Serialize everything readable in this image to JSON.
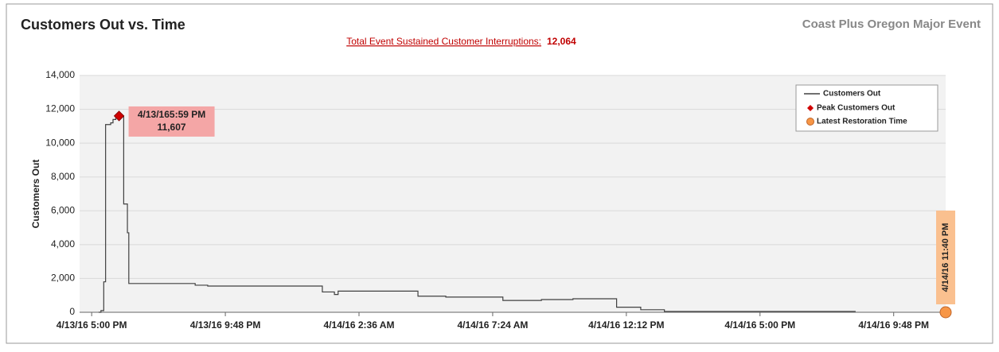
{
  "chart_data": {
    "type": "step-line",
    "title": "Customers Out vs. Time",
    "subtitle": "Coast Plus Oregon Major Event",
    "summary_label": "Total Event Sustained Customer Interruptions:",
    "summary_value": "12,064",
    "y_label": "Customers Out",
    "grid": true,
    "legend": "top-right",
    "xlim": [
      "2016-04-13T16:34",
      "2016-04-14T23:40"
    ],
    "xticks": [
      {
        "value": "2016-04-13T17:00",
        "label": "4/13/16 5:00 PM"
      },
      {
        "value": "2016-04-13T21:48",
        "label": "4/13/16 9:48 PM"
      },
      {
        "value": "2016-04-14T02:36",
        "label": "4/14/16 2:36 AM"
      },
      {
        "value": "2016-04-14T07:24",
        "label": "4/14/16 7:24 AM"
      },
      {
        "value": "2016-04-14T12:12",
        "label": "4/14/16 12:12 PM"
      },
      {
        "value": "2016-04-14T17:00",
        "label": "4/14/16 5:00 PM"
      },
      {
        "value": "2016-04-14T21:48",
        "label": "4/14/16 9:48 PM"
      }
    ],
    "ylim": [
      0,
      14000
    ],
    "yticks": [
      0,
      {
        "value": 2000,
        "label": "2,000"
      },
      {
        "value": 4000,
        "label": "4,000"
      },
      {
        "value": 6000,
        "label": "6,000"
      },
      {
        "value": 8000,
        "label": "8,000"
      },
      {
        "value": 10000,
        "label": "10,000"
      },
      {
        "value": 12000,
        "label": "12,000"
      },
      {
        "value": 14000,
        "label": "14,000"
      }
    ],
    "series": [
      {
        "name": "Customers Out",
        "color": "#404040",
        "x": [
          "2016-04-13T17:15",
          "2016-04-13T17:20",
          "2016-04-13T17:26",
          "2016-04-13T17:30",
          "2016-04-13T17:41",
          "2016-04-13T17:46",
          "2016-04-13T17:52",
          "2016-04-13T17:59",
          "2016-04-13T18:09",
          "2016-04-13T18:17",
          "2016-04-13T18:20",
          "2016-04-13T20:43",
          "2016-04-13T21:10",
          "2016-04-14T01:17",
          "2016-04-14T01:43",
          "2016-04-14T01:51",
          "2016-04-14T04:43",
          "2016-04-14T05:43",
          "2016-04-14T07:46",
          "2016-04-14T09:09",
          "2016-04-14T10:17",
          "2016-04-14T11:51",
          "2016-04-14T12:43",
          "2016-04-14T13:34",
          "2016-04-14T20:26"
        ],
        "values": [
          0,
          100,
          1800,
          11100,
          11200,
          11400,
          11500,
          11607,
          6400,
          4700,
          1700,
          1600,
          1550,
          1200,
          1050,
          1250,
          950,
          900,
          700,
          750,
          800,
          300,
          150,
          50,
          50
        ]
      }
    ],
    "peak": {
      "name": "Peak Customers Out",
      "color": "#d00000",
      "x": "2016-04-13T17:59",
      "value": 11607,
      "label": "4/13/165:59 PM",
      "value_label": "11,607"
    },
    "latest": {
      "name": "Latest Restoration Time",
      "color": "#f79646",
      "x": "2016-04-14T23:40",
      "value": 0,
      "label": "4/14/16 11:40 PM"
    }
  }
}
